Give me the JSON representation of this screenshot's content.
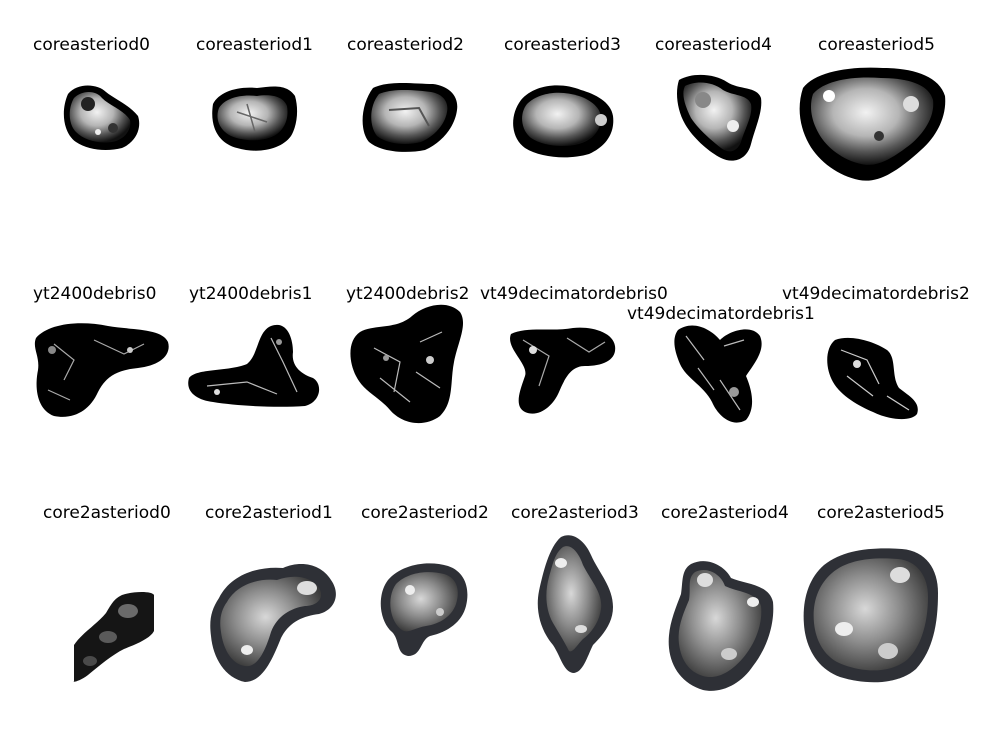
{
  "row1": [
    "coreasteriod0",
    "coreasteriod1",
    "coreasteriod2",
    "coreasteriod3",
    "coreasteriod4",
    "coreasteriod5"
  ],
  "row2": [
    "yt2400debris0",
    "yt2400debris1",
    "yt2400debris2",
    "vt49decimatordebris0",
    "vt49decimatordebris1",
    "vt49decimatordebris2"
  ],
  "row3": [
    "core2asteriod0",
    "core2asteriod1",
    "core2asteriod2",
    "core2asteriod3",
    "core2asteriod4",
    "core2asteriod5"
  ]
}
